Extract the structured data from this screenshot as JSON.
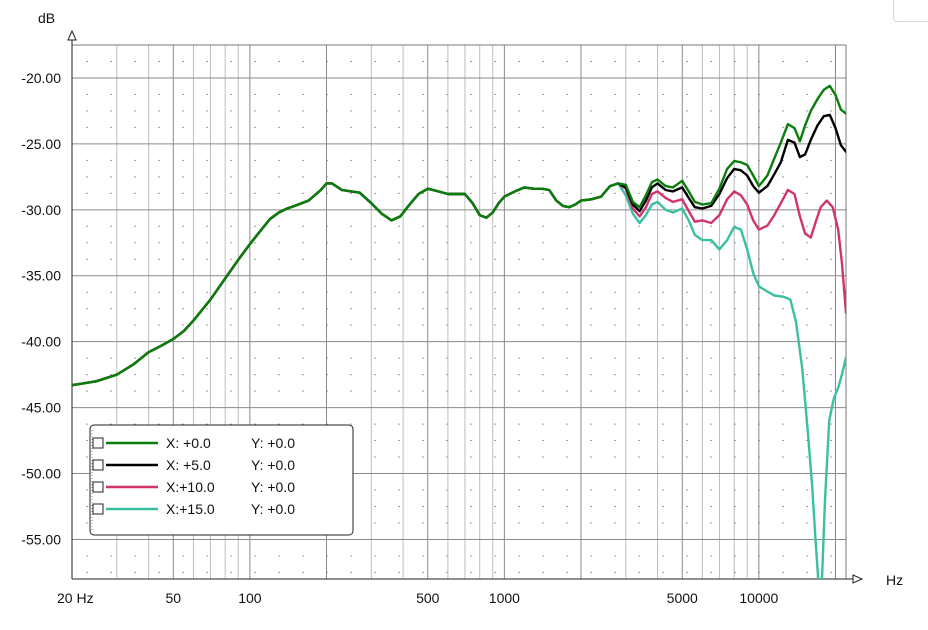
{
  "chart_data": {
    "type": "line",
    "title": "",
    "xlabel": "Hz",
    "ylabel": "dB",
    "x_scale": "log",
    "xlim": [
      20,
      22000
    ],
    "ylim": [
      -58,
      -17.5
    ],
    "grid": true,
    "legend_position": "bottom-left",
    "x_ticks": [
      {
        "value": 20,
        "label": "20 Hz"
      },
      {
        "value": 50,
        "label": "50"
      },
      {
        "value": 100,
        "label": "100"
      },
      {
        "value": 500,
        "label": "500"
      },
      {
        "value": 1000,
        "label": "1000"
      },
      {
        "value": 5000,
        "label": "5000"
      },
      {
        "value": 10000,
        "label": "10000"
      }
    ],
    "y_ticks": [
      {
        "value": -20,
        "label": "-20.00"
      },
      {
        "value": -25,
        "label": "-25.00"
      },
      {
        "value": -30,
        "label": "-30.00"
      },
      {
        "value": -35,
        "label": "-35.00"
      },
      {
        "value": -40,
        "label": "-40.00"
      },
      {
        "value": -45,
        "label": "-45.00"
      },
      {
        "value": -50,
        "label": "-50.00"
      },
      {
        "value": -55,
        "label": "-55.00"
      }
    ],
    "base_curve": [
      [
        20,
        -43.3
      ],
      [
        25,
        -43.0
      ],
      [
        30,
        -42.5
      ],
      [
        35,
        -41.7
      ],
      [
        40,
        -40.8
      ],
      [
        45,
        -40.3
      ],
      [
        50,
        -39.8
      ],
      [
        55,
        -39.2
      ],
      [
        60,
        -38.4
      ],
      [
        70,
        -36.8
      ],
      [
        80,
        -35.2
      ],
      [
        90,
        -33.8
      ],
      [
        100,
        -32.6
      ],
      [
        110,
        -31.6
      ],
      [
        120,
        -30.7
      ],
      [
        130,
        -30.2
      ],
      [
        140,
        -29.9
      ],
      [
        150,
        -29.7
      ],
      [
        170,
        -29.3
      ],
      [
        190,
        -28.5
      ],
      [
        200,
        -28.0
      ],
      [
        210,
        -28.0
      ],
      [
        230,
        -28.5
      ],
      [
        250,
        -28.6
      ],
      [
        270,
        -28.7
      ],
      [
        300,
        -29.5
      ],
      [
        330,
        -30.3
      ],
      [
        360,
        -30.8
      ],
      [
        390,
        -30.5
      ],
      [
        420,
        -29.7
      ],
      [
        460,
        -28.8
      ],
      [
        500,
        -28.4
      ],
      [
        550,
        -28.6
      ],
      [
        600,
        -28.8
      ],
      [
        650,
        -28.8
      ],
      [
        700,
        -28.8
      ],
      [
        750,
        -29.5
      ],
      [
        800,
        -30.4
      ],
      [
        850,
        -30.6
      ],
      [
        900,
        -30.2
      ],
      [
        950,
        -29.5
      ],
      [
        1000,
        -29.0
      ],
      [
        1100,
        -28.6
      ],
      [
        1200,
        -28.3
      ],
      [
        1300,
        -28.4
      ],
      [
        1400,
        -28.4
      ],
      [
        1500,
        -28.5
      ],
      [
        1600,
        -29.3
      ],
      [
        1700,
        -29.7
      ],
      [
        1800,
        -29.8
      ],
      [
        1900,
        -29.6
      ],
      [
        2000,
        -29.3
      ],
      [
        2200,
        -29.2
      ],
      [
        2400,
        -29.0
      ],
      [
        2600,
        -28.2
      ],
      [
        2800,
        -28.0
      ],
      [
        3000,
        -28.6
      ],
      [
        3200,
        -29.8
      ],
      [
        3400,
        -30.4
      ],
      [
        3600,
        -29.8
      ],
      [
        3800,
        -29.0
      ],
      [
        4000,
        -28.8
      ],
      [
        4300,
        -29.0
      ],
      [
        4600,
        -29.1
      ],
      [
        5000,
        -29.1
      ],
      [
        5300,
        -29.7
      ],
      [
        5600,
        -30.2
      ],
      [
        6000,
        -30.2
      ],
      [
        6500,
        -30.3
      ],
      [
        7000,
        -30.0
      ],
      [
        7500,
        -29.5
      ],
      [
        8000,
        -29.0
      ],
      [
        8500,
        -28.6
      ],
      [
        9000,
        -28.6
      ],
      [
        9500,
        -28.8
      ],
      [
        10000,
        -29.0
      ]
    ],
    "series": [
      {
        "name": "X:  +0.0    Y:  +0.0",
        "x_label": "X:  +0.0",
        "y_label": "Y:  +0.0",
        "color": "#0a7e0a",
        "points": [
          [
            3000,
            -28.1
          ],
          [
            3200,
            -29.4
          ],
          [
            3400,
            -29.8
          ],
          [
            3600,
            -28.9
          ],
          [
            3800,
            -27.9
          ],
          [
            4000,
            -27.7
          ],
          [
            4300,
            -28.2
          ],
          [
            4600,
            -28.3
          ],
          [
            5000,
            -27.8
          ],
          [
            5300,
            -28.6
          ],
          [
            5600,
            -29.4
          ],
          [
            6000,
            -29.6
          ],
          [
            6500,
            -29.5
          ],
          [
            7000,
            -28.4
          ],
          [
            7500,
            -26.9
          ],
          [
            8000,
            -26.3
          ],
          [
            8500,
            -26.4
          ],
          [
            9000,
            -26.6
          ],
          [
            9500,
            -27.4
          ],
          [
            10000,
            -28.2
          ],
          [
            10800,
            -27.4
          ],
          [
            11500,
            -26.1
          ],
          [
            12200,
            -24.9
          ],
          [
            13000,
            -23.5
          ],
          [
            13800,
            -23.8
          ],
          [
            14500,
            -24.8
          ],
          [
            15200,
            -23.6
          ],
          [
            16000,
            -22.5
          ],
          [
            17000,
            -21.6
          ],
          [
            18000,
            -20.9
          ],
          [
            19000,
            -20.6
          ],
          [
            20000,
            -21.3
          ],
          [
            21000,
            -22.4
          ],
          [
            22000,
            -22.7
          ]
        ]
      },
      {
        "name": "X:  +5.0    Y:  +0.0",
        "x_label": "X:  +5.0",
        "y_label": "Y:  +0.0",
        "color": "#000000",
        "points": [
          [
            3000,
            -28.3
          ],
          [
            3200,
            -29.6
          ],
          [
            3400,
            -30.1
          ],
          [
            3600,
            -29.3
          ],
          [
            3800,
            -28.3
          ],
          [
            4000,
            -28.0
          ],
          [
            4300,
            -28.5
          ],
          [
            4600,
            -28.6
          ],
          [
            5000,
            -28.3
          ],
          [
            5300,
            -29.1
          ],
          [
            5600,
            -29.8
          ],
          [
            6000,
            -29.9
          ],
          [
            6500,
            -29.7
          ],
          [
            7000,
            -28.8
          ],
          [
            7500,
            -27.6
          ],
          [
            8000,
            -26.9
          ],
          [
            8500,
            -27.0
          ],
          [
            9000,
            -27.4
          ],
          [
            9500,
            -28.2
          ],
          [
            10000,
            -28.7
          ],
          [
            10800,
            -28.2
          ],
          [
            11500,
            -27.3
          ],
          [
            12200,
            -26.4
          ],
          [
            13000,
            -24.7
          ],
          [
            13800,
            -24.9
          ],
          [
            14500,
            -26.0
          ],
          [
            15200,
            -25.8
          ],
          [
            16000,
            -24.7
          ],
          [
            17000,
            -23.6
          ],
          [
            18000,
            -22.9
          ],
          [
            19000,
            -22.8
          ],
          [
            20000,
            -23.8
          ],
          [
            21000,
            -25.1
          ],
          [
            22000,
            -25.6
          ]
        ]
      },
      {
        "name": "X:+10.0    Y:  +0.0",
        "x_label": "X:+10.0",
        "y_label": "Y:  +0.0",
        "color": "#d1336e",
        "points": [
          [
            3000,
            -28.4
          ],
          [
            3200,
            -29.9
          ],
          [
            3400,
            -30.5
          ],
          [
            3600,
            -29.8
          ],
          [
            3800,
            -28.8
          ],
          [
            4000,
            -28.6
          ],
          [
            4300,
            -29.1
          ],
          [
            4600,
            -29.4
          ],
          [
            5000,
            -29.2
          ],
          [
            5300,
            -30.1
          ],
          [
            5600,
            -30.9
          ],
          [
            6000,
            -30.8
          ],
          [
            6500,
            -31.0
          ],
          [
            7000,
            -30.4
          ],
          [
            7500,
            -29.2
          ],
          [
            8000,
            -28.6
          ],
          [
            8500,
            -28.9
          ],
          [
            9000,
            -29.6
          ],
          [
            9500,
            -30.8
          ],
          [
            10000,
            -31.5
          ],
          [
            10800,
            -31.2
          ],
          [
            11500,
            -30.4
          ],
          [
            12200,
            -29.5
          ],
          [
            13000,
            -28.5
          ],
          [
            13800,
            -28.8
          ],
          [
            14500,
            -30.5
          ],
          [
            15200,
            -31.8
          ],
          [
            16000,
            -32.1
          ],
          [
            16800,
            -30.8
          ],
          [
            17500,
            -29.8
          ],
          [
            18500,
            -29.3
          ],
          [
            19500,
            -29.8
          ],
          [
            20500,
            -31.5
          ],
          [
            21200,
            -34.0
          ],
          [
            22000,
            -37.8
          ]
        ]
      },
      {
        "name": "X:+15.0    Y:  +0.0",
        "x_label": "X:+15.0",
        "y_label": "Y:  +0.0",
        "color": "#3bbfa1",
        "points": [
          [
            3000,
            -28.9
          ],
          [
            3200,
            -30.3
          ],
          [
            3400,
            -31.0
          ],
          [
            3600,
            -30.4
          ],
          [
            3800,
            -29.6
          ],
          [
            4000,
            -29.4
          ],
          [
            4300,
            -30.0
          ],
          [
            4600,
            -30.2
          ],
          [
            5000,
            -29.9
          ],
          [
            5300,
            -30.8
          ],
          [
            5600,
            -31.9
          ],
          [
            6000,
            -32.3
          ],
          [
            6500,
            -32.3
          ],
          [
            7000,
            -33.0
          ],
          [
            7500,
            -32.3
          ],
          [
            8000,
            -31.3
          ],
          [
            8500,
            -31.5
          ],
          [
            9000,
            -33.0
          ],
          [
            9500,
            -34.8
          ],
          [
            10000,
            -35.8
          ],
          [
            10800,
            -36.2
          ],
          [
            11500,
            -36.5
          ],
          [
            12500,
            -36.6
          ],
          [
            13300,
            -36.8
          ],
          [
            14000,
            -38.5
          ],
          [
            14800,
            -42.0
          ],
          [
            15600,
            -47.0
          ],
          [
            16200,
            -51.0
          ],
          [
            16700,
            -55.0
          ],
          [
            17100,
            -58.0
          ],
          [
            17700,
            -58.0
          ],
          [
            18200,
            -52.0
          ],
          [
            18900,
            -46.0
          ],
          [
            19700,
            -44.3
          ],
          [
            20500,
            -43.5
          ],
          [
            21200,
            -42.5
          ],
          [
            22000,
            -41.2
          ]
        ]
      }
    ]
  }
}
